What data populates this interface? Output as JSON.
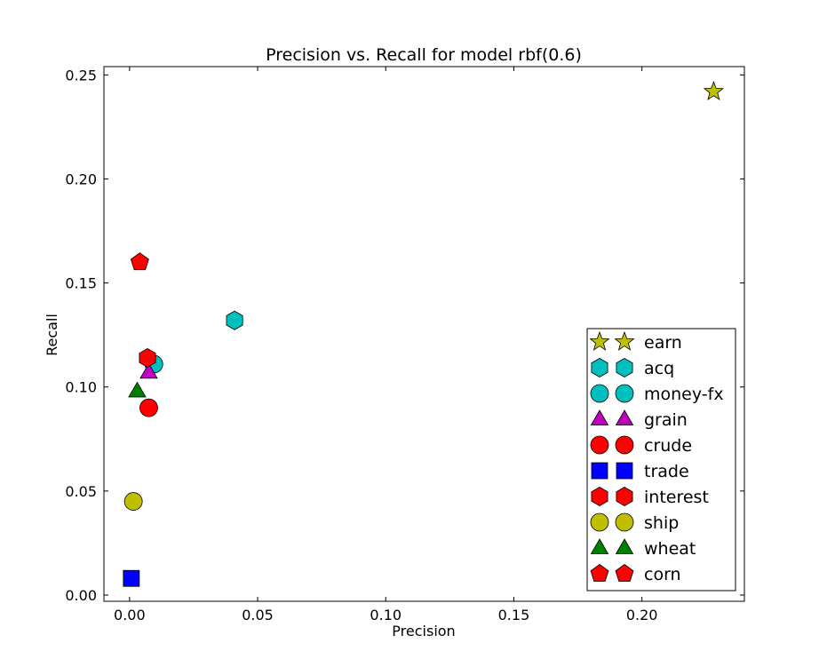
{
  "chart_data": {
    "type": "scatter",
    "title": "Precision vs. Recall for model rbf(0.6)",
    "xlabel": "Precision",
    "ylabel": "Recall",
    "xlim": [
      -0.01,
      0.24
    ],
    "ylim": [
      -0.003,
      0.254
    ],
    "xticks": [
      0.0,
      0.05,
      0.1,
      0.15,
      0.2
    ],
    "xtick_labels": [
      "0.00",
      "0.05",
      "0.10",
      "0.15",
      "0.20"
    ],
    "yticks": [
      0.0,
      0.05,
      0.1,
      0.15,
      0.2,
      0.25
    ],
    "ytick_labels": [
      "0.00",
      "0.05",
      "0.10",
      "0.15",
      "0.20",
      "0.25"
    ],
    "grid": false,
    "legend_position": "bottom-right",
    "series": [
      {
        "name": "earn",
        "marker": "star",
        "color": "#bfbf00",
        "x": 0.228,
        "y": 0.242
      },
      {
        "name": "acq",
        "marker": "hexagon",
        "color": "#00bfbf",
        "x": 0.041,
        "y": 0.132
      },
      {
        "name": "money-fx",
        "marker": "circle",
        "color": "#00bfbf",
        "x": 0.0095,
        "y": 0.111
      },
      {
        "name": "grain",
        "marker": "triangle",
        "color": "#bf00bf",
        "x": 0.0075,
        "y": 0.107
      },
      {
        "name": "crude",
        "marker": "circle",
        "color": "#ff0000",
        "x": 0.0075,
        "y": 0.09
      },
      {
        "name": "trade",
        "marker": "square",
        "color": "#0000ff",
        "x": 0.0007,
        "y": 0.008
      },
      {
        "name": "interest",
        "marker": "hexagon",
        "color": "#ff0000",
        "x": 0.007,
        "y": 0.114
      },
      {
        "name": "ship",
        "marker": "circle",
        "color": "#bfbf00",
        "x": 0.0015,
        "y": 0.045
      },
      {
        "name": "wheat",
        "marker": "triangle",
        "color": "#008000",
        "x": 0.003,
        "y": 0.098
      },
      {
        "name": "corn",
        "marker": "pentagon",
        "color": "#ff0000",
        "x": 0.004,
        "y": 0.16
      }
    ]
  }
}
